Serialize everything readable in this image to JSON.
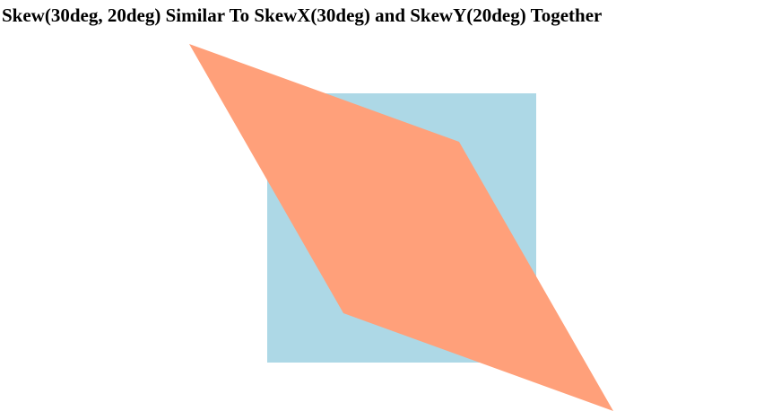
{
  "page": {
    "title": "Skew(30deg, 20deg) Similar To SkewX(30deg) and SkewY(20deg) Together"
  },
  "shapes": {
    "original_box": {
      "color": "#add8e6"
    },
    "skewed_box": {
      "color": "#ffa07a"
    }
  }
}
